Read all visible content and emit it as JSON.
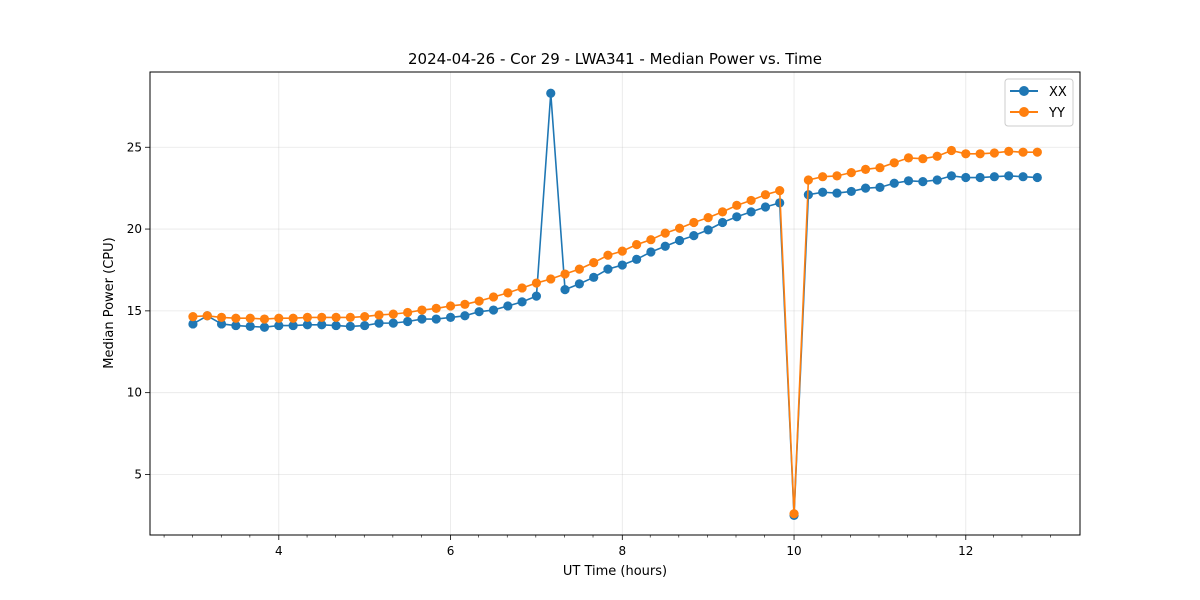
{
  "chart_data": {
    "type": "line",
    "title": "2024-04-26 - Cor 29 - LWA341 - Median Power vs. Time",
    "xlabel": "UT Time (hours)",
    "ylabel": "Median Power (CPU)",
    "xlim": [
      2.5,
      13.33
    ],
    "ylim": [
      1.3,
      29.6
    ],
    "x_major_ticks": [
      4,
      6,
      8,
      10,
      12
    ],
    "x_tick_labels": [
      "4",
      "6",
      "8",
      "10",
      "12"
    ],
    "x_minor_step": 0.333,
    "y_major_ticks": [
      5,
      10,
      15,
      20,
      25
    ],
    "y_tick_labels": [
      "5",
      "10",
      "15",
      "20",
      "25"
    ],
    "grid": true,
    "legend_position": "top-right",
    "x": [
      3.0,
      3.167,
      3.333,
      3.5,
      3.667,
      3.833,
      4.0,
      4.167,
      4.333,
      4.5,
      4.667,
      4.833,
      5.0,
      5.167,
      5.333,
      5.5,
      5.667,
      5.833,
      6.0,
      6.167,
      6.333,
      6.5,
      6.667,
      6.833,
      7.0,
      7.167,
      7.333,
      7.5,
      7.667,
      7.833,
      8.0,
      8.167,
      8.333,
      8.5,
      8.667,
      8.833,
      9.0,
      9.167,
      9.333,
      9.5,
      9.667,
      9.833,
      10.0,
      10.167,
      10.333,
      10.5,
      10.667,
      10.833,
      11.0,
      11.167,
      11.333,
      11.5,
      11.667,
      11.833,
      12.0,
      12.167,
      12.333,
      12.5,
      12.667,
      12.833
    ],
    "series": [
      {
        "name": "XX",
        "color": "#1f77b4",
        "values": [
          14.2,
          14.7,
          14.2,
          14.1,
          14.05,
          14.0,
          14.1,
          14.1,
          14.15,
          14.15,
          14.1,
          14.05,
          14.1,
          14.25,
          14.25,
          14.35,
          14.5,
          14.5,
          14.6,
          14.7,
          14.95,
          15.05,
          15.3,
          15.55,
          15.9,
          28.3,
          16.3,
          16.65,
          17.05,
          17.55,
          17.8,
          18.15,
          18.6,
          18.95,
          19.3,
          19.6,
          19.95,
          20.4,
          20.75,
          21.05,
          21.35,
          21.6,
          2.5,
          22.1,
          22.25,
          22.2,
          22.3,
          22.5,
          22.55,
          22.8,
          22.95,
          22.9,
          23.0,
          23.25,
          23.15,
          23.15,
          23.2,
          23.25,
          23.2,
          23.15
        ]
      },
      {
        "name": "YY",
        "color": "#ff7f0e",
        "values": [
          14.65,
          14.7,
          14.6,
          14.55,
          14.55,
          14.5,
          14.55,
          14.55,
          14.6,
          14.6,
          14.6,
          14.6,
          14.65,
          14.75,
          14.8,
          14.9,
          15.05,
          15.15,
          15.3,
          15.4,
          15.6,
          15.85,
          16.1,
          16.4,
          16.7,
          16.95,
          17.25,
          17.55,
          17.95,
          18.4,
          18.65,
          19.05,
          19.35,
          19.75,
          20.05,
          20.4,
          20.7,
          21.05,
          21.45,
          21.75,
          22.1,
          22.35,
          2.6,
          23.0,
          23.2,
          23.25,
          23.45,
          23.65,
          23.75,
          24.05,
          24.35,
          24.3,
          24.45,
          24.8,
          24.6,
          24.6,
          24.65,
          24.75,
          24.7,
          24.7
        ]
      }
    ]
  }
}
